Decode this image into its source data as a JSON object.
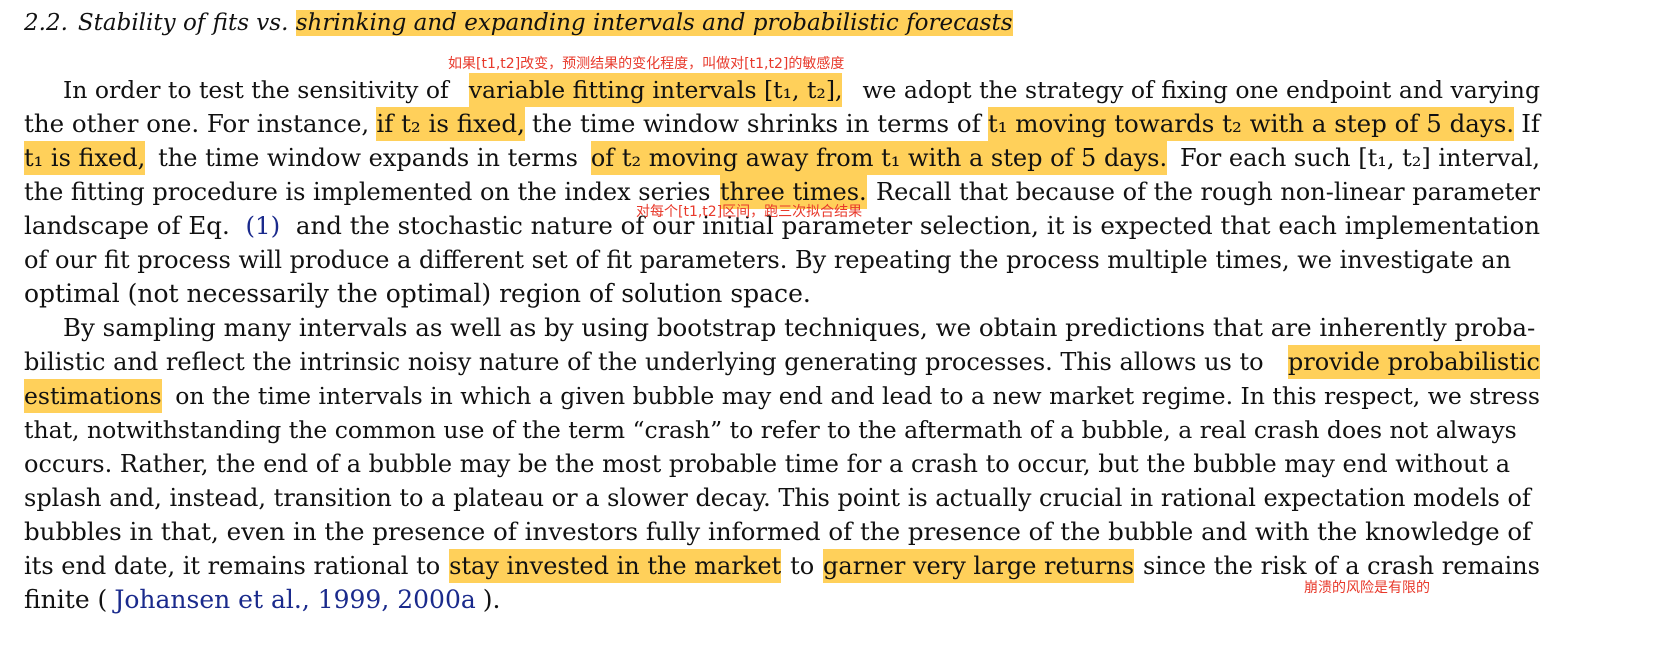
{
  "section": {
    "number": "2.2.",
    "title_plain": "Stability of fits vs.",
    "title_highlight": "shrinking and expanding intervals and probabilistic forecasts"
  },
  "annotations": {
    "note1": "如果[t1,t2]改变，预测结果的变化程度，叫做对[t1,t2]的敏感度",
    "note2": "对每个[t1,t2]区间，跑三次拟合结果",
    "note3": "崩溃的风险是有限的"
  },
  "paragraph1": {
    "lines": [
      [
        {
          "t": "In order to test the sensitivity of",
          "k": "plain"
        },
        {
          "t": "variable fitting intervals [t₁, t₂],",
          "k": "hl"
        },
        {
          "t": "we adopt the strategy of fixing one endpoint and varying",
          "k": "plain"
        }
      ],
      [
        {
          "t": "the other one. For instance,",
          "k": "plain"
        },
        {
          "t": "if t₂ is fixed,",
          "k": "hl"
        },
        {
          "t": "the time window shrinks in terms of",
          "k": "plain"
        },
        {
          "t": "t₁ moving towards t₂ with a step of 5 days.",
          "k": "hl"
        },
        {
          "t": "If",
          "k": "plain"
        }
      ],
      [
        {
          "t": "t₁ is fixed,",
          "k": "hl"
        },
        {
          "t": "the time window expands in terms",
          "k": "plain"
        },
        {
          "t": "of t₂ moving away from t₁ with a step of 5 days.",
          "k": "hl"
        },
        {
          "t": "For each such [t₁, t₂] interval,",
          "k": "plain"
        }
      ],
      [
        {
          "t": "the fitting procedure is implemented on the index series",
          "k": "plain"
        },
        {
          "t": "three times.",
          "k": "hl"
        },
        {
          "t": "Recall that because of the rough non-linear parameter",
          "k": "plain"
        }
      ],
      [
        {
          "t": "landscape of Eq.",
          "k": "plain"
        },
        {
          "t": "(1)",
          "k": "ref"
        },
        {
          "t": "and the stochastic nature of our initial parameter selection, it is expected that each implementation",
          "k": "plain"
        }
      ],
      [
        {
          "t": "of our fit process will produce a different set of fit parameters. By repeating the process multiple times, we investigate an",
          "k": "plain"
        }
      ],
      [
        {
          "t": "optimal (not necessarily the optimal) region of solution space.",
          "k": "plain"
        }
      ]
    ]
  },
  "paragraph2": {
    "lines": [
      [
        {
          "t": "By sampling many intervals as well as by using bootstrap techniques, we obtain predictions that are inherently proba-",
          "k": "plain"
        }
      ],
      [
        {
          "t": "bilistic and reflect the intrinsic noisy nature of the underlying generating processes. This allows us to",
          "k": "plain"
        },
        {
          "t": "provide probabilistic",
          "k": "hl"
        }
      ],
      [
        {
          "t": "estimations",
          "k": "hl"
        },
        {
          "t": "on the time intervals in which a given bubble may end and lead to a new market regime. In this respect, we stress",
          "k": "plain"
        }
      ],
      [
        {
          "t": "that, notwithstanding the common use of the term “crash” to refer to the aftermath of a bubble, a real crash does not always",
          "k": "plain"
        }
      ],
      [
        {
          "t": "occurs. Rather, the end of a bubble may be the most probable time for a crash to occur, but the bubble may end without a",
          "k": "plain"
        }
      ],
      [
        {
          "t": "splash and, instead, transition to a plateau or a slower decay. This point is actually crucial in rational expectation models of",
          "k": "plain"
        }
      ],
      [
        {
          "t": "bubbles in that, even in the presence of investors fully informed of the presence of the bubble and with the knowledge of",
          "k": "plain"
        }
      ],
      [
        {
          "t": "its end date, it remains rational to",
          "k": "plain"
        },
        {
          "t": "stay invested in the market",
          "k": "hl"
        },
        {
          "t": "to",
          "k": "plain"
        },
        {
          "t": "garner very large returns",
          "k": "hl"
        },
        {
          "t": "since the risk of a crash remains",
          "k": "plain"
        }
      ],
      [
        {
          "t": "finite (",
          "k": "plain"
        },
        {
          "t": "Johansen et al., 1999, 2000a",
          "k": "ref"
        },
        {
          "t": ").",
          "k": "plain"
        }
      ]
    ]
  }
}
